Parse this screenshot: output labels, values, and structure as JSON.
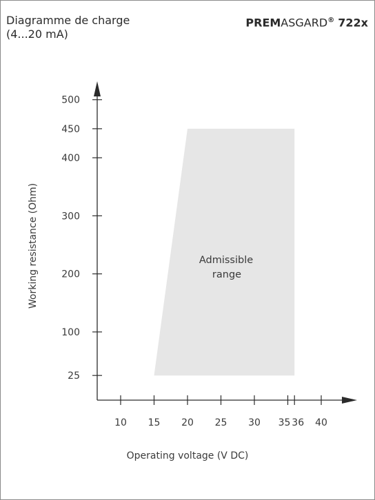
{
  "header": {
    "title_line1": "Diagramme de charge",
    "title_line2": "(4...20 mA)",
    "brand_bold": "PREM",
    "brand_rest": "ASGARD",
    "brand_reg": "®",
    "model": "722x"
  },
  "colors": {
    "region_fill": "#e6e6e6",
    "axis": "#2b2b2b",
    "text": "#3a3a3a",
    "frame": "#8a8a8a"
  },
  "chart_data": {
    "type": "area",
    "xlabel": "Operating voltage  (V DC)",
    "ylabel": "Working resistance  (Ohm)",
    "x_ticks": [
      10,
      15,
      20,
      25,
      30,
      35,
      36,
      40
    ],
    "y_ticks": [
      25,
      100,
      200,
      300,
      400,
      450,
      500
    ],
    "region": {
      "label_line1": "Admissible",
      "label_line2": "range",
      "polygon": [
        {
          "x": 15,
          "y": 25
        },
        {
          "x": 20,
          "y": 450
        },
        {
          "x": 36,
          "y": 450
        },
        {
          "x": 36,
          "y": 25
        }
      ]
    }
  }
}
